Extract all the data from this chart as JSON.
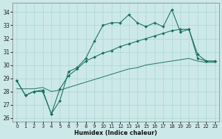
{
  "xlabel": "Humidex (Indice chaleur)",
  "background_color": "#cce8e8",
  "grid_color": "#aad4d4",
  "line_color": "#1a7060",
  "xlim": [
    -0.5,
    23.5
  ],
  "ylim": [
    25.7,
    34.7
  ],
  "xticks": [
    0,
    1,
    2,
    3,
    4,
    5,
    6,
    7,
    8,
    9,
    10,
    11,
    12,
    13,
    14,
    15,
    16,
    17,
    18,
    19,
    20,
    21,
    22,
    23
  ],
  "yticks": [
    26,
    27,
    28,
    29,
    30,
    31,
    32,
    33,
    34
  ],
  "line_top": [
    28.8,
    27.7,
    28.0,
    28.0,
    26.3,
    27.3,
    29.5,
    29.8,
    30.5,
    31.8,
    33.0,
    33.2,
    33.2,
    33.8,
    33.2,
    32.9,
    33.2,
    32.9,
    34.2,
    32.5,
    32.7,
    30.8,
    30.3,
    30.3
  ],
  "line_mid": [
    28.8,
    27.7,
    28.0,
    28.1,
    26.3,
    28.2,
    29.2,
    29.7,
    30.3,
    30.6,
    30.9,
    31.1,
    31.4,
    31.6,
    31.8,
    32.0,
    32.2,
    32.4,
    32.6,
    32.7,
    32.7,
    30.5,
    30.3,
    30.3
  ],
  "line_bot": [
    28.2,
    28.2,
    28.2,
    28.3,
    28.0,
    28.1,
    28.3,
    28.5,
    28.7,
    28.9,
    29.1,
    29.3,
    29.5,
    29.7,
    29.8,
    30.0,
    30.1,
    30.2,
    30.3,
    30.4,
    30.5,
    30.3,
    30.2,
    30.2
  ]
}
